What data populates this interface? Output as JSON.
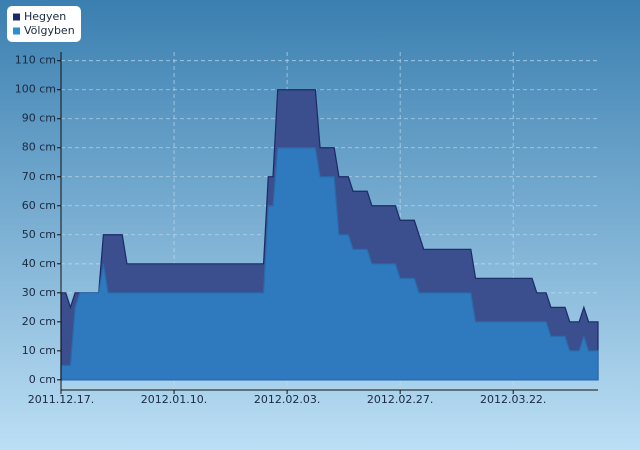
{
  "chart_data": {
    "type": "area",
    "x": [
      "2011-12-17",
      "2011-12-18",
      "2011-12-19",
      "2011-12-20",
      "2011-12-21",
      "2011-12-25",
      "2011-12-26",
      "2011-12-27",
      "2011-12-30",
      "2011-12-31",
      "2012-01-29",
      "2012-01-30",
      "2012-01-31",
      "2012-02-01",
      "2012-02-09",
      "2012-02-10",
      "2012-02-13",
      "2012-02-14",
      "2012-02-16",
      "2012-02-17",
      "2012-02-20",
      "2012-02-21",
      "2012-02-26",
      "2012-02-27",
      "2012-03-01",
      "2012-03-02",
      "2012-03-03",
      "2012-03-13",
      "2012-03-14",
      "2012-03-26",
      "2012-03-27",
      "2012-03-29",
      "2012-03-30",
      "2012-04-02",
      "2012-04-03",
      "2012-04-05",
      "2012-04-06",
      "2012-04-07",
      "2012-04-09"
    ],
    "series": [
      {
        "name": "Hegyen",
        "color": "#3b4e8e",
        "values": [
          30,
          30,
          25,
          30,
          30,
          30,
          50,
          50,
          50,
          40,
          40,
          70,
          70,
          100,
          100,
          80,
          80,
          70,
          70,
          65,
          65,
          60,
          60,
          55,
          55,
          50,
          45,
          45,
          35,
          35,
          30,
          30,
          25,
          25,
          20,
          20,
          25,
          20,
          20
        ]
      },
      {
        "name": "Völgyben",
        "color": "#2f7abf",
        "values": [
          5,
          5,
          5,
          25,
          30,
          30,
          40,
          30,
          30,
          30,
          30,
          60,
          60,
          80,
          80,
          70,
          70,
          50,
          50,
          45,
          45,
          40,
          40,
          35,
          35,
          30,
          30,
          30,
          20,
          20,
          20,
          20,
          15,
          15,
          10,
          10,
          15,
          10,
          10
        ]
      }
    ],
    "xlim": [
      "2011-12-17",
      "2012-04-09"
    ],
    "xticks": [
      {
        "value": "2011-12-17",
        "label": "2011.12.17."
      },
      {
        "value": "2012-01-10",
        "label": "2012.01.10."
      },
      {
        "value": "2012-02-03",
        "label": "2012.02.03."
      },
      {
        "value": "2012-02-27",
        "label": "2012.02.27."
      },
      {
        "value": "2012-03-22",
        "label": "2012.03.22."
      }
    ],
    "ylim": [
      -3.5,
      113
    ],
    "yticks": [
      {
        "value": 0,
        "label": "0 cm"
      },
      {
        "value": 10,
        "label": "10 cm"
      },
      {
        "value": 20,
        "label": "20 cm"
      },
      {
        "value": 30,
        "label": "30 cm"
      },
      {
        "value": 40,
        "label": "40 cm"
      },
      {
        "value": 50,
        "label": "50 cm"
      },
      {
        "value": 60,
        "label": "60 cm"
      },
      {
        "value": 70,
        "label": "70 cm"
      },
      {
        "value": 80,
        "label": "80 cm"
      },
      {
        "value": 90,
        "label": "90 cm"
      },
      {
        "value": 100,
        "label": "100 cm"
      },
      {
        "value": 110,
        "label": "110 cm"
      }
    ],
    "grid": true,
    "legend": "top-left"
  }
}
